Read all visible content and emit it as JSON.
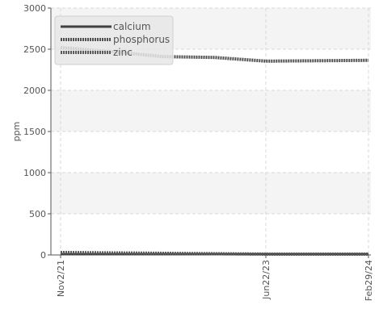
{
  "chart_data": {
    "type": "line",
    "ylabel": "ppm",
    "ylim": [
      0,
      3000
    ],
    "yticks": [
      0,
      500,
      1000,
      1500,
      2000,
      2500,
      3000
    ],
    "xticks": [
      "Nov2/21",
      "Jun22/23",
      "Feb29/24"
    ],
    "x": [
      "Nov2/21",
      "Jan1/22",
      "Jun1/22",
      "Jan1/23",
      "Jun22/23",
      "Oct1/23",
      "Feb29/24"
    ],
    "grid": true,
    "legend_position": "top-left",
    "series": [
      {
        "name": "calcium",
        "color": "#404040",
        "style": "solid",
        "values": [
          10,
          10,
          10,
          10,
          10,
          10,
          10
        ]
      },
      {
        "name": "phosphorus",
        "color": "#505050",
        "style": "dotted",
        "values": [
          2520,
          2470,
          2410,
          2400,
          2355,
          2360,
          2365
        ]
      },
      {
        "name": "zinc",
        "color": "#5a5a5a",
        "style": "dotted",
        "values": [
          30,
          25,
          20,
          15,
          10,
          10,
          10
        ]
      }
    ]
  }
}
